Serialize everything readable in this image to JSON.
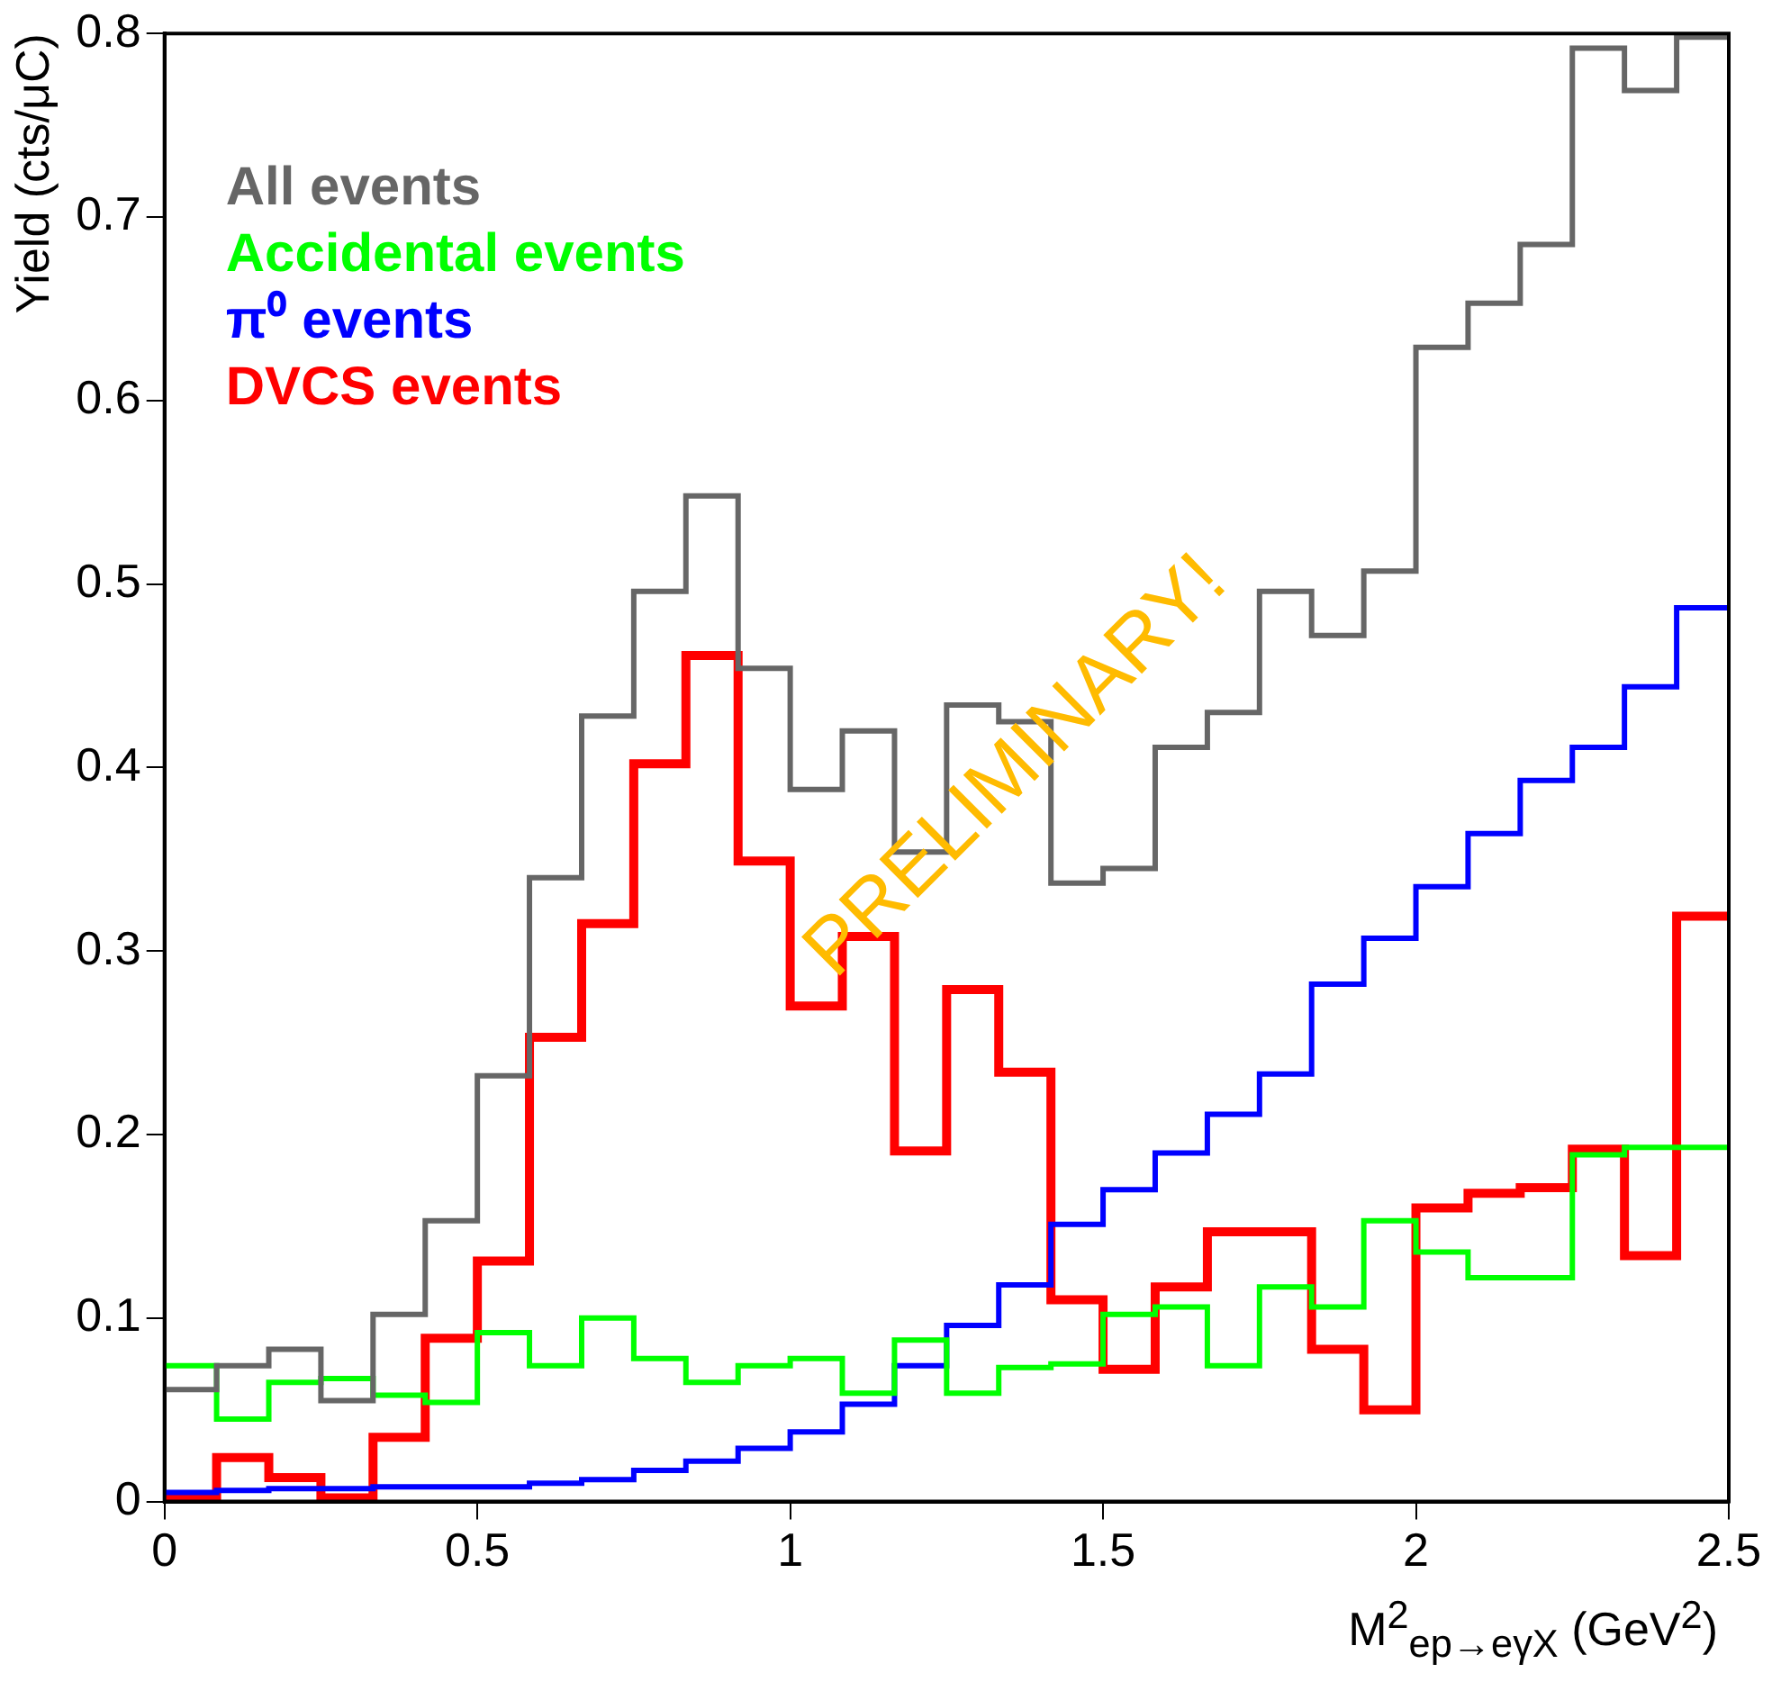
{
  "chart_data": {
    "type": "histogram",
    "xlabel": "M$^{2}$$_{ep→eγX}$ (GeV$^{2}$)",
    "ylabel": "Yield (cts/μC)",
    "bins": [
      0,
      0.0833,
      0.1667,
      0.25,
      0.3333,
      0.4167,
      0.5,
      0.5833,
      0.6667,
      0.75,
      0.8333,
      0.9167,
      1,
      1.0833,
      1.1667,
      1.25,
      1.3333,
      1.4167,
      1.5,
      1.5833,
      1.6667,
      1.75,
      1.8333,
      1.9167,
      2,
      2.0833,
      2.1667,
      2.25,
      2.3333,
      2.4167,
      2.5
    ],
    "series": [
      {
        "name": "All events",
        "color": "#666666",
        "values": [
          0.061,
          0.074,
          0.083,
          0.055,
          0.102,
          0.153,
          0.232,
          0.34,
          0.428,
          0.496,
          0.548,
          0.454,
          0.388,
          0.42,
          0.354,
          0.434,
          0.425,
          0.337,
          0.345,
          0.411,
          0.43,
          0.496,
          0.472,
          0.507,
          0.629,
          0.653,
          0.685,
          0.792,
          0.769,
          0.798
        ]
      },
      {
        "name": "Accidental events",
        "color": "#00ff00",
        "values": [
          0.074,
          0.045,
          0.065,
          0.067,
          0.058,
          0.054,
          0.092,
          0.074,
          0.1,
          0.078,
          0.065,
          0.074,
          0.078,
          0.059,
          0.088,
          0.059,
          0.073,
          0.075,
          0.102,
          0.106,
          0.074,
          0.117,
          0.106,
          0.153,
          0.136,
          0.122,
          0.122,
          0.189,
          0.193,
          0.193
        ]
      },
      {
        "name": "π⁰ events",
        "color": "#0000ff",
        "values": [
          0.005,
          0.006,
          0.007,
          0.007,
          0.008,
          0.008,
          0.008,
          0.01,
          0.012,
          0.017,
          0.022,
          0.029,
          0.038,
          0.053,
          0.074,
          0.096,
          0.118,
          0.151,
          0.17,
          0.19,
          0.211,
          0.233,
          0.282,
          0.307,
          0.335,
          0.364,
          0.393,
          0.411,
          0.444,
          0.487
        ]
      },
      {
        "name": "DVCS events",
        "color": "#ff0000",
        "values": [
          0.002,
          0.024,
          0.013,
          0.002,
          0.035,
          0.089,
          0.131,
          0.253,
          0.315,
          0.402,
          0.461,
          0.349,
          0.27,
          0.308,
          0.191,
          0.279,
          0.234,
          0.11,
          0.072,
          0.117,
          0.147,
          0.147,
          0.083,
          0.05,
          0.16,
          0.168,
          0.171,
          0.192,
          0.134,
          0.319
        ]
      }
    ],
    "xlim": [
      0,
      2.5
    ],
    "xticks": [
      0,
      0.5,
      1,
      1.5,
      2,
      2.5
    ],
    "ylim": [
      0,
      0.8
    ],
    "yticks": [
      0,
      0.1,
      0.2,
      0.3,
      0.4,
      0.5,
      0.6,
      0.7,
      0.8
    ],
    "legend": "top left",
    "annotations": [
      "PRELIMINARY!"
    ]
  }
}
